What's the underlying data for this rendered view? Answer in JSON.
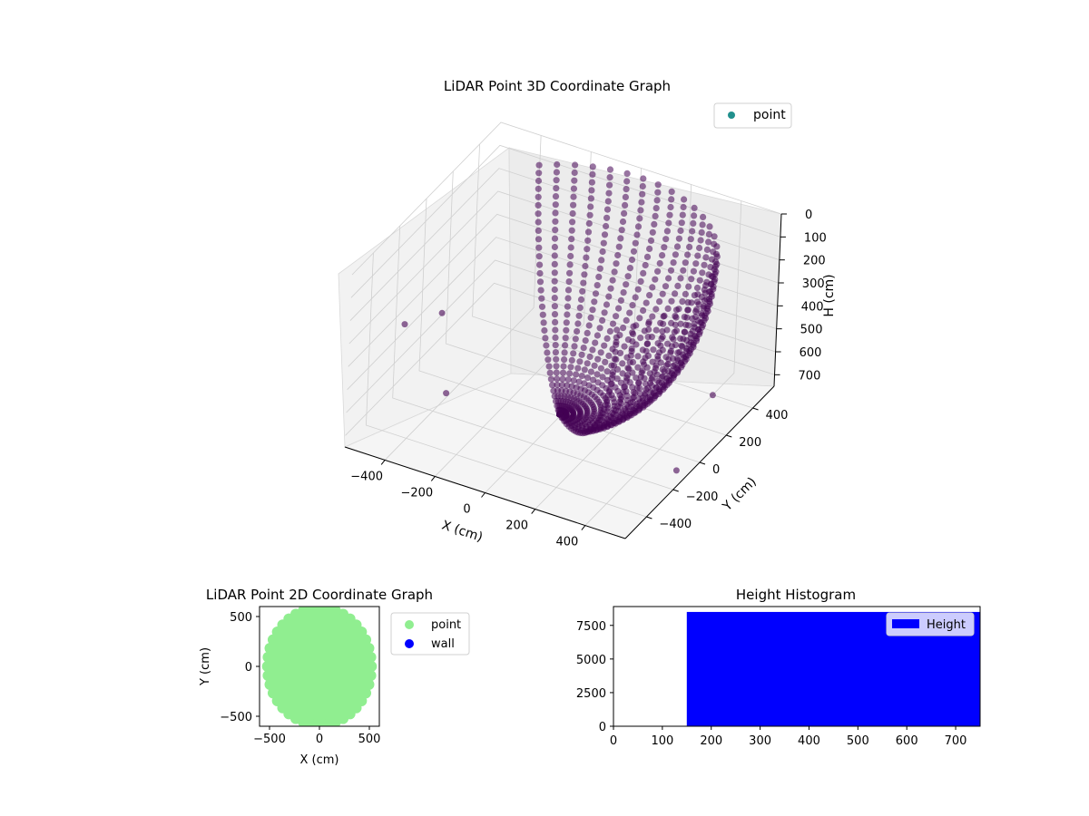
{
  "chart_data": [
    {
      "type": "scatter",
      "projection": "3d",
      "title": "LiDAR Point 3D Coordinate Graph",
      "xlabel": "X (cm)",
      "ylabel": "Y (cm)",
      "zlabel": "H (cm)",
      "xticks": [
        -400,
        -200,
        0,
        200,
        400
      ],
      "yticks": [
        -400,
        -200,
        0,
        200,
        400
      ],
      "zticks": [
        0,
        100,
        200,
        300,
        400,
        500,
        600,
        700
      ],
      "xlim": [
        -560,
        560
      ],
      "ylim": [
        -560,
        560
      ],
      "zlim": [
        750,
        0
      ],
      "z_axis_inverted": true,
      "grid": true,
      "legend": {
        "placement": "top-right",
        "entries": [
          {
            "label": "point",
            "color": "#21908d"
          }
        ]
      },
      "marker_color": "#440154",
      "series": [
        {
          "name": "point",
          "description_points": [
            {
              "x": -560,
              "y": -130,
              "z": 470
            },
            {
              "x": -480,
              "y": 0,
              "z": 470
            },
            {
              "x": -250,
              "y": -400,
              "z": 500
            },
            {
              "x": 420,
              "y": 360,
              "z": 720
            },
            {
              "x": 520,
              "y": -100,
              "z": 740
            }
          ]
        }
      ]
    },
    {
      "type": "scatter",
      "title": "LiDAR Point 2D Coordinate Graph",
      "xlabel": "X (cm)",
      "ylabel": "Y (cm)",
      "xticks": [
        -500,
        0,
        500
      ],
      "yticks": [
        -500,
        0,
        500
      ],
      "xlim": [
        -600,
        600
      ],
      "ylim": [
        -600,
        600
      ],
      "legend": {
        "placement": "outside-right",
        "entries": [
          {
            "label": "point",
            "color": "#90ee90"
          },
          {
            "label": "wall",
            "color": "#0000ff"
          }
        ]
      },
      "series": [
        {
          "name": "point",
          "color": "#90ee90",
          "region": "filled ellipse",
          "center": [
            0,
            0
          ],
          "radius_x": 560,
          "radius_y": 560
        },
        {
          "name": "wall",
          "color": "#0000ff",
          "values": []
        }
      ]
    },
    {
      "type": "bar",
      "subtype": "histogram",
      "title": "Height Histogram",
      "xticks": [
        0,
        100,
        200,
        300,
        400,
        500,
        600,
        700
      ],
      "yticks": [
        0,
        2500,
        5000,
        7500
      ],
      "xlim": [
        0,
        750
      ],
      "ylim": [
        0,
        8900
      ],
      "color": "#0000ff",
      "legend": {
        "placement": "upper-right",
        "entries": [
          {
            "label": "Height",
            "color": "#0000ff"
          }
        ]
      },
      "bins": [
        {
          "x0": 150,
          "x1": 750,
          "count": 8500
        }
      ]
    }
  ]
}
